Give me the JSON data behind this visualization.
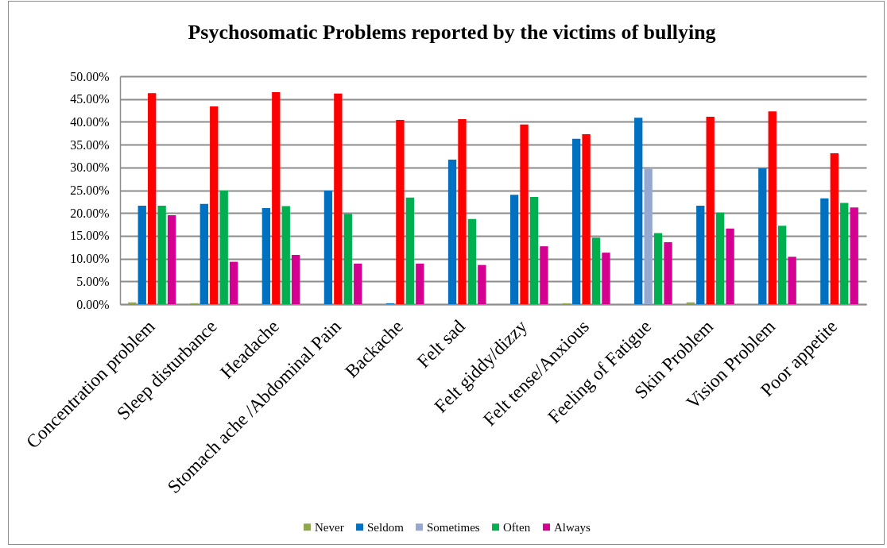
{
  "chart_data": {
    "type": "bar",
    "title": "Psychosomatic Problems reported by the victims of bullying",
    "categories": [
      "Concentration problem",
      "Sleep disturbance",
      "Headache",
      "Stomach ache /Abdominal Pain",
      "Backache",
      "Felt sad",
      "Felt giddy/dizzy",
      "Felt tense/Anxious",
      "Feeling of Fatigue",
      "Skin Problem",
      "Vision Problem",
      "Poor appetite"
    ],
    "series": [
      {
        "name": "Never",
        "color": "#8ea84e",
        "values": [
          0.4,
          0.2,
          0,
          0,
          0,
          0,
          0,
          0.2,
          0,
          0.4,
          0,
          0
        ]
      },
      {
        "name": "Seldom",
        "color": "#0070c0",
        "values": [
          21.6,
          22.0,
          21.1,
          24.9,
          0.2,
          31.7,
          24.0,
          36.3,
          40.9,
          21.6,
          29.8,
          23.2
        ]
      },
      {
        "name": "Sometimes",
        "color": "#95a8d2",
        "colors": [
          "#ff0000",
          "#ff0000",
          "#ff0000",
          "#ff0000",
          "#ff0000",
          "#ff0000",
          "#ff0000",
          "#ff0000",
          "#95a8d2",
          "#ff0000",
          "#ff0000",
          "#ff0000"
        ],
        "values": [
          46.3,
          43.4,
          46.5,
          46.2,
          40.4,
          40.6,
          39.4,
          37.3,
          29.7,
          41.1,
          42.3,
          33.1
        ]
      },
      {
        "name": "Often",
        "color": "#00b050",
        "values": [
          21.6,
          24.9,
          21.5,
          19.8,
          23.4,
          18.7,
          23.5,
          14.6,
          15.6,
          20.1,
          17.2,
          22.2
        ]
      },
      {
        "name": "Always",
        "color": "#d4008f",
        "values": [
          19.5,
          9.3,
          10.8,
          8.9,
          8.9,
          8.6,
          12.7,
          11.3,
          13.6,
          16.6,
          10.4,
          21.2
        ]
      }
    ],
    "ylim": [
      0,
      50
    ],
    "yticks": [
      {
        "value": 0,
        "label": "0.00%"
      },
      {
        "value": 5,
        "label": "5.00%"
      },
      {
        "value": 10,
        "label": "10.00%"
      },
      {
        "value": 15,
        "label": "15.00%"
      },
      {
        "value": 20,
        "label": "20.00%"
      },
      {
        "value": 25,
        "label": "25.00%"
      },
      {
        "value": 30,
        "label": "30.00%"
      },
      {
        "value": 35,
        "label": "35.00%"
      },
      {
        "value": 40,
        "label": "40.00%"
      },
      {
        "value": 45,
        "label": "45.00%"
      },
      {
        "value": 50,
        "label": "50.00%"
      }
    ],
    "grid": "y",
    "legend": "bottom"
  }
}
